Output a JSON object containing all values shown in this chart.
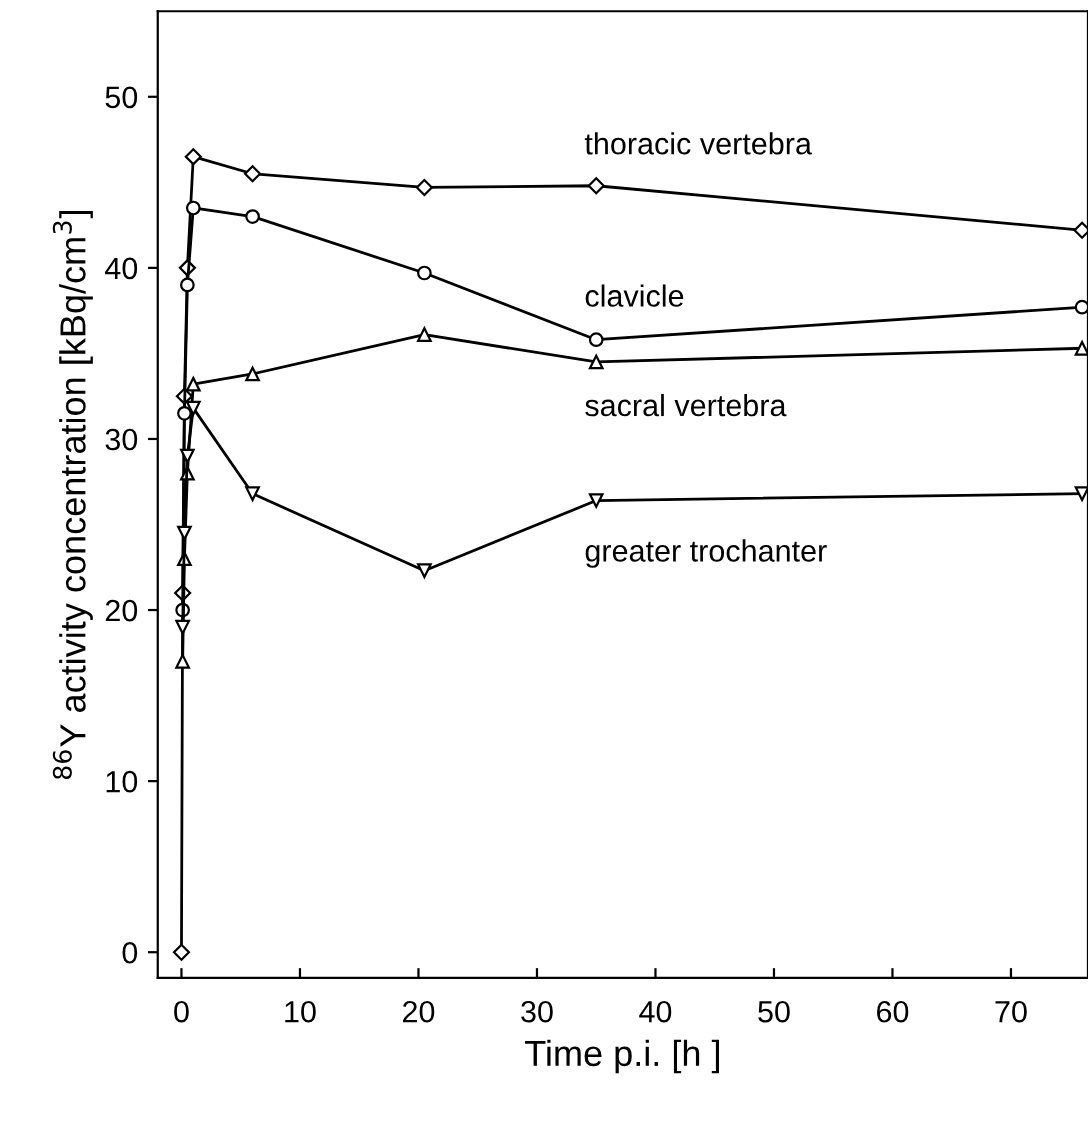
{
  "chart_data": {
    "type": "line",
    "xlabel": "Time p.i. [h ]",
    "ylabel": "$^{86}$Y activity concentration [kBq/cm$^{3}$]",
    "xlim": [
      -2,
      76.5
    ],
    "ylim": [
      -1.5,
      55
    ],
    "xticks": [
      0,
      10,
      20,
      30,
      40,
      50,
      60,
      70
    ],
    "yticks": [
      0,
      10,
      20,
      30,
      40,
      50
    ],
    "grid": false,
    "legend": false,
    "series": [
      {
        "name": "thoracic vertebra",
        "color": "#000000",
        "marker": "diamond",
        "x": [
          0,
          0.1,
          0.25,
          0.5,
          1,
          6,
          20.5,
          35,
          76
        ],
        "values": [
          0,
          21,
          32.5,
          40,
          46.5,
          45.5,
          44.7,
          44.8,
          42.2
        ]
      },
      {
        "name": "clavicle",
        "color": "#000000",
        "marker": "circle",
        "x": [
          0.1,
          0.25,
          0.5,
          1,
          6,
          20.5,
          35,
          76
        ],
        "values": [
          20,
          31.5,
          39,
          43.5,
          43,
          39.7,
          35.8,
          37.7
        ]
      },
      {
        "name": "sacral vertebra",
        "color": "#000000",
        "marker": "triangle",
        "x": [
          0.1,
          0.25,
          0.5,
          1,
          6,
          20.5,
          35,
          76
        ],
        "values": [
          17,
          23,
          28,
          33.2,
          33.8,
          36.1,
          34.5,
          35.3
        ]
      },
      {
        "name": "greater trochanter",
        "color": "#000000",
        "marker": "triangle_down",
        "x": [
          0.1,
          0.25,
          0.5,
          1,
          6,
          20.5,
          35,
          76
        ],
        "values": [
          19,
          24.5,
          29,
          31.8,
          26.8,
          22.3,
          26.4,
          26.8
        ]
      }
    ]
  }
}
